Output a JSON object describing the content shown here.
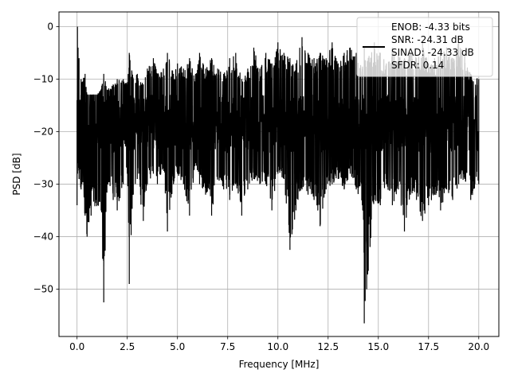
{
  "chart_data": {
    "type": "line",
    "title": "",
    "xlabel": "Frequency [MHz]",
    "ylabel": "PSD [dB]",
    "xlim": [
      -0.9,
      21.0
    ],
    "ylim": [
      -59.0,
      2.8
    ],
    "x_ticks": [
      0.0,
      2.5,
      5.0,
      7.5,
      10.0,
      12.5,
      15.0,
      17.5,
      20.0
    ],
    "x_tick_labels": [
      "0.0",
      "2.5",
      "5.0",
      "7.5",
      "10.0",
      "12.5",
      "15.0",
      "17.5",
      "20.0"
    ],
    "y_ticks": [
      0,
      -10,
      -20,
      -30,
      -40,
      -50
    ],
    "y_tick_labels": [
      "0",
      "−10",
      "−20",
      "−30",
      "−40",
      "−50"
    ],
    "grid": true,
    "legend_position": "top-right",
    "series": [
      {
        "name": "ENOB: -4.33 bits\nSNR: -24.31 dB\nSINAD: -24.33 dB\nSFDR: 0.14",
        "color": "#000000",
        "x": [
          0.0,
          0.02,
          0.05,
          0.1,
          0.2,
          0.4,
          0.5,
          0.7,
          1.0,
          1.2,
          1.33,
          1.5,
          1.8,
          2.0,
          2.3,
          2.5,
          2.6,
          2.8,
          3.0,
          3.3,
          3.5,
          3.8,
          4.0,
          4.3,
          4.5,
          4.8,
          5.0,
          5.3,
          5.6,
          5.9,
          6.1,
          6.4,
          6.7,
          7.0,
          7.3,
          7.6,
          7.9,
          8.2,
          8.5,
          8.8,
          9.1,
          9.4,
          9.7,
          10.0,
          10.3,
          10.6,
          10.9,
          11.2,
          11.5,
          11.8,
          12.1,
          12.4,
          12.7,
          13.0,
          13.3,
          13.6,
          13.9,
          14.2,
          14.3,
          14.5,
          14.8,
          15.1,
          15.4,
          15.7,
          16.0,
          16.3,
          16.6,
          16.9,
          17.2,
          17.5,
          17.8,
          18.1,
          18.4,
          18.7,
          19.0,
          19.3,
          19.6,
          20.0
        ],
        "y_upper": [
          -14,
          0,
          -4,
          -6,
          -10,
          -9,
          -13,
          -13,
          -13,
          -12,
          -9,
          -12,
          -11,
          -10,
          -10,
          -11,
          -5,
          -10,
          -9,
          -11,
          -8,
          -6,
          -9,
          -8,
          -5,
          -9,
          -7,
          -8,
          -6,
          -9,
          -5,
          -8,
          -6,
          -8,
          -9,
          -6,
          -5,
          -10,
          -8,
          -4,
          -8,
          -5,
          -7,
          -3,
          -5,
          -6,
          -7,
          -2,
          -5,
          -6,
          -5,
          -6,
          -3,
          -7,
          -5,
          -4,
          -5,
          -8,
          -4,
          -6,
          -3,
          -5,
          -7,
          -4,
          -5,
          -6,
          -5,
          -6,
          -3,
          -7,
          -6,
          -5,
          -4,
          -6,
          -3,
          -5,
          -9,
          -10
        ],
        "y_lower": [
          -34,
          -28,
          -26,
          -29,
          -31,
          -36,
          -40,
          -36,
          -34,
          -35,
          -52.5,
          -30,
          -33,
          -35,
          -30,
          -28,
          -49,
          -32,
          -29,
          -37,
          -30,
          -28,
          -30,
          -27,
          -39,
          -30,
          -28,
          -30,
          -36,
          -26,
          -30,
          -32,
          -36,
          -29,
          -31,
          -33,
          -30,
          -36,
          -31,
          -29,
          -30,
          -30,
          -35,
          -28,
          -29,
          -42.5,
          -35,
          -31,
          -32,
          -33,
          -38,
          -31,
          -30,
          -29,
          -31,
          -28,
          -31,
          -34,
          -56.5,
          -46.5,
          -33,
          -34,
          -30,
          -34,
          -31,
          -39,
          -32,
          -33,
          -37,
          -34,
          -32,
          -35,
          -31,
          -33,
          -30,
          -29,
          -33,
          -30
        ],
        "y_band_top": -13,
        "y_band_bottom": -24
      }
    ]
  }
}
